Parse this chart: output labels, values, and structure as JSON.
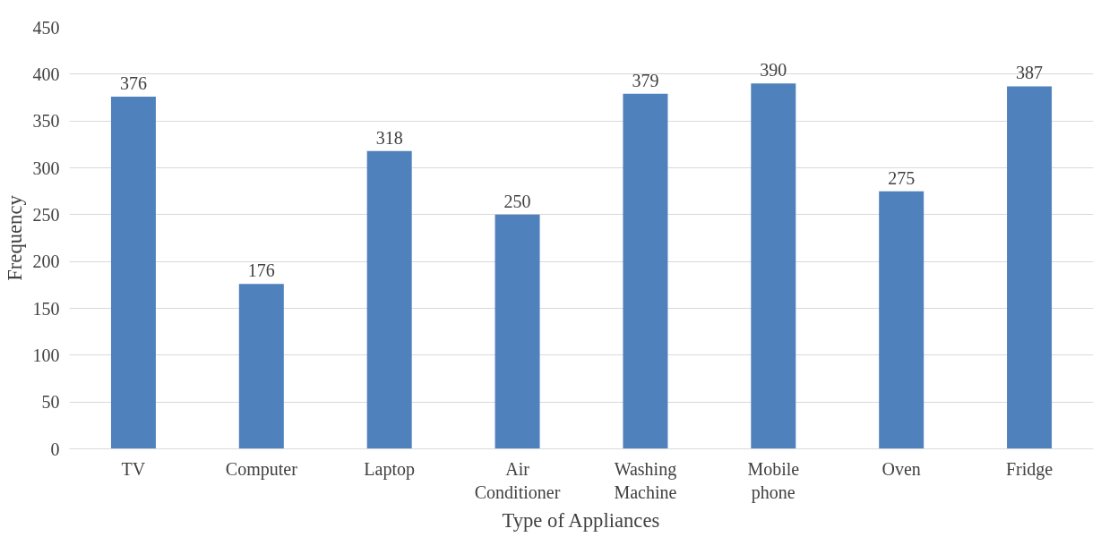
{
  "chart_data": {
    "type": "bar",
    "xlabel": "Type of Appliances",
    "ylabel": "Frequency",
    "categories": [
      "TV",
      "Computer",
      "Laptop",
      "Air Conditioner",
      "Washing Machine",
      "Mobile phone",
      "Oven",
      "Fridge"
    ],
    "values": [
      376,
      176,
      318,
      250,
      379,
      390,
      275,
      387
    ],
    "color": "#4f81bd",
    "ylim": [
      0,
      450
    ],
    "yticks": [
      0,
      50,
      100,
      150,
      200,
      250,
      300,
      350,
      400,
      450
    ],
    "grid": "y",
    "data_labels": true
  }
}
